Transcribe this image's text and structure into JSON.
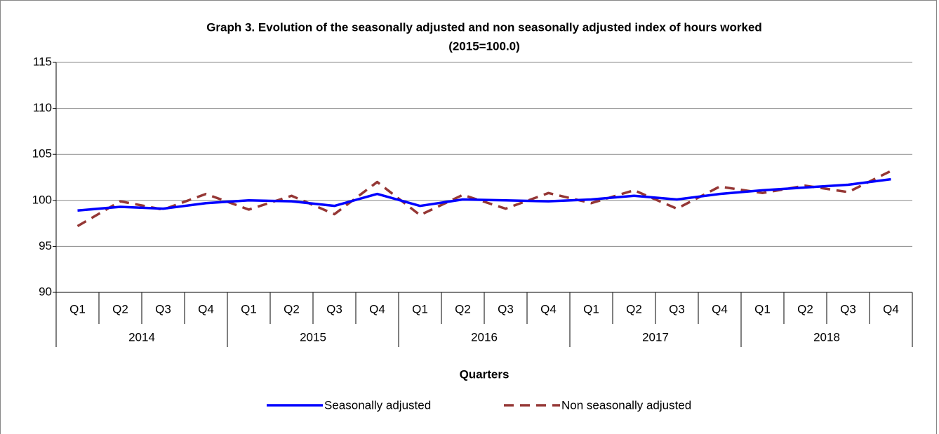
{
  "chart_data": {
    "type": "line",
    "title": "Graph 3. Evolution of the seasonally adjusted and non seasonally adjusted index of hours worked",
    "subtitle": "(2015=100.0)",
    "x_label": "Quarters",
    "categories": [
      "Q1",
      "Q2",
      "Q3",
      "Q4",
      "Q1",
      "Q2",
      "Q3",
      "Q4",
      "Q1",
      "Q2",
      "Q3",
      "Q4",
      "Q1",
      "Q2",
      "Q3",
      "Q4",
      "Q1",
      "Q2",
      "Q3",
      "Q4"
    ],
    "groups": [
      "2014",
      "2015",
      "2016",
      "2017",
      "2018"
    ],
    "series": [
      {
        "name": "Seasonally adjusted",
        "color": "#0000ff",
        "dashed": false,
        "values": [
          98.9,
          99.3,
          99.1,
          99.7,
          100.0,
          99.9,
          99.4,
          100.7,
          99.4,
          100.1,
          100.0,
          99.9,
          100.1,
          100.5,
          100.1,
          100.7,
          101.1,
          101.4,
          101.7,
          102.3
        ]
      },
      {
        "name": "Non seasonally adjusted",
        "color": "#953735",
        "dashed": true,
        "values": [
          97.2,
          99.9,
          99.0,
          100.7,
          99.0,
          100.5,
          98.5,
          102.0,
          98.4,
          100.6,
          99.1,
          100.8,
          99.7,
          101.1,
          99.1,
          101.5,
          100.8,
          101.6,
          100.9,
          103.2
        ]
      }
    ],
    "ylim": [
      90,
      115
    ],
    "yticks": [
      90,
      95,
      100,
      105,
      110,
      115
    ],
    "grid": true,
    "legend": "bottom"
  }
}
